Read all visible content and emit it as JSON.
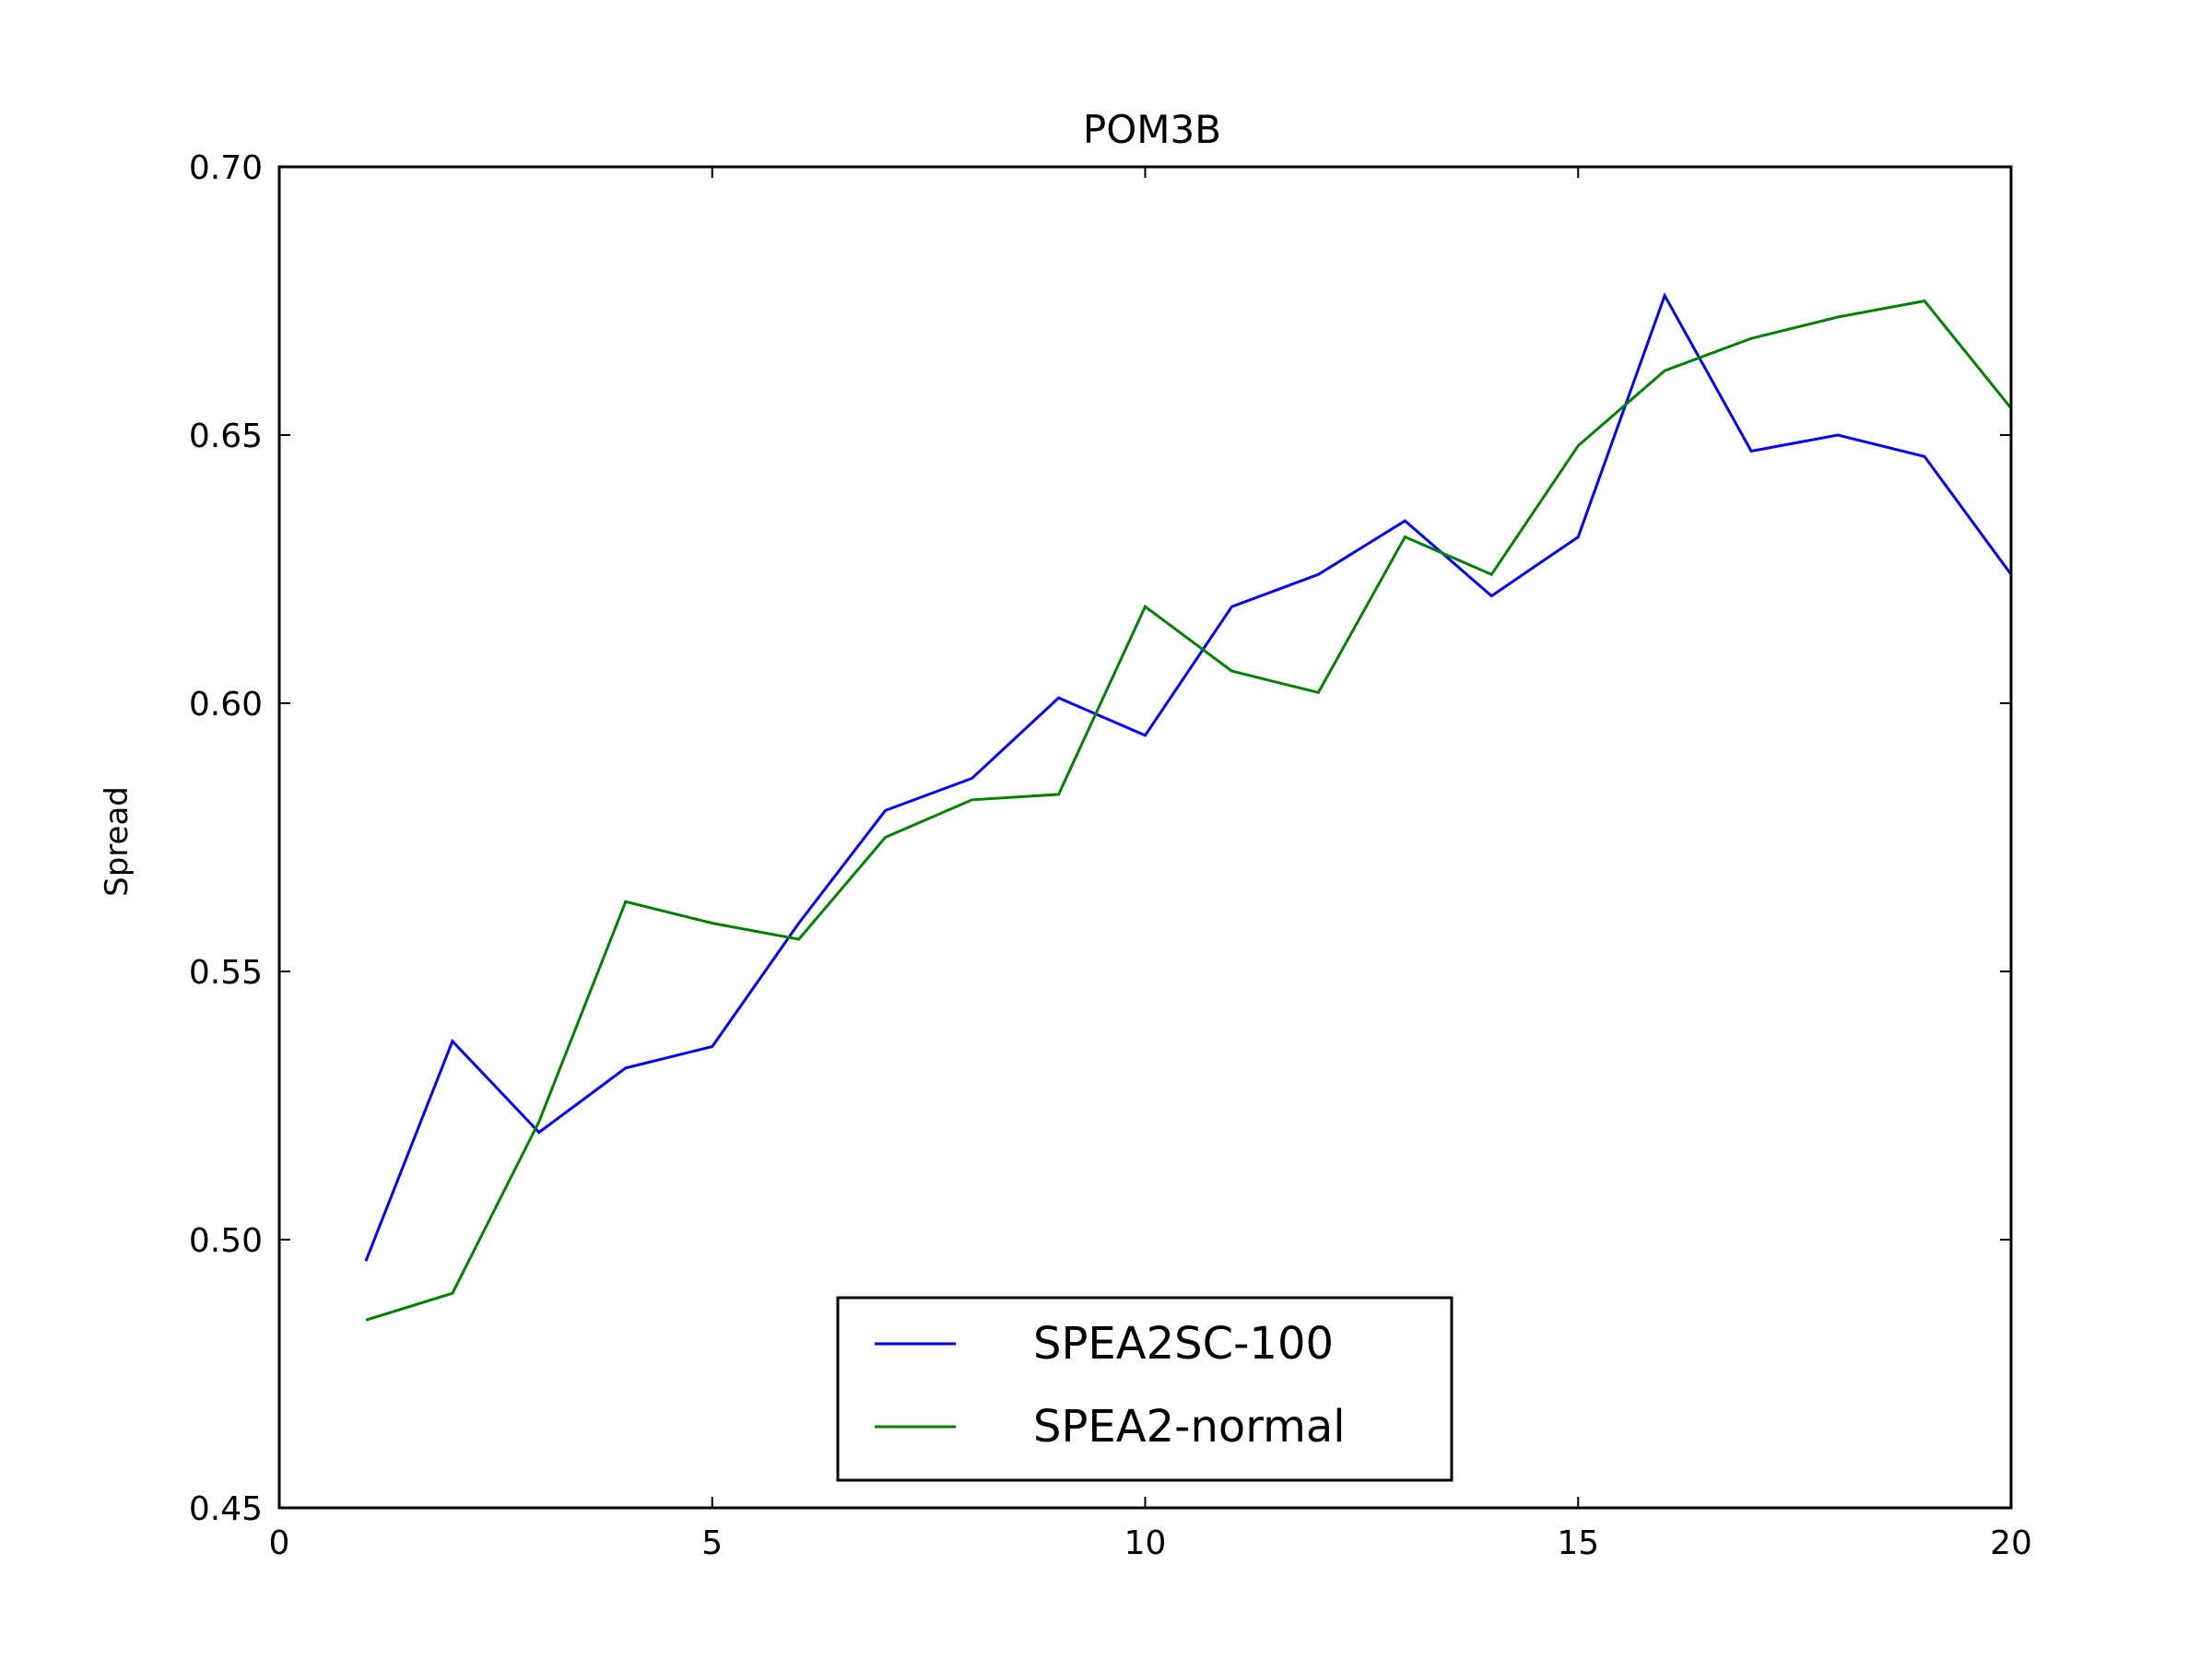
{
  "chart_data": {
    "type": "line",
    "title": "POM3B",
    "xlabel": "",
    "ylabel": "Spread",
    "xlim": [
      0,
      20
    ],
    "ylim": [
      0.45,
      0.7
    ],
    "xticks": [
      0,
      5,
      10,
      15,
      20
    ],
    "xtick_labels": [
      "0",
      "5",
      "10",
      "15",
      "20"
    ],
    "yticks": [
      0.45,
      0.5,
      0.55,
      0.6,
      0.65,
      0.7
    ],
    "ytick_labels": [
      "0.45",
      "0.50",
      "0.55",
      "0.60",
      "0.65",
      "0.70"
    ],
    "grid": false,
    "legend_position": "bottom-center",
    "x": [
      1,
      2,
      3,
      4,
      5,
      6,
      7,
      8,
      9,
      10,
      11,
      12,
      13,
      14,
      15,
      16,
      17,
      18,
      19,
      20
    ],
    "series": [
      {
        "name": "SPEA2SC-100",
        "color": "#0000ff",
        "values": [
          0.496,
          0.537,
          0.52,
          0.532,
          0.536,
          0.559,
          0.58,
          0.586,
          0.601,
          0.594,
          0.618,
          0.624,
          0.634,
          0.62,
          0.631,
          0.676,
          0.647,
          0.65,
          0.646,
          0.624
        ]
      },
      {
        "name": "SPEA2-normal",
        "color": "#008000",
        "values": [
          0.485,
          0.49,
          0.522,
          0.563,
          0.559,
          0.556,
          0.575,
          0.582,
          0.583,
          0.618,
          0.606,
          0.602,
          0.631,
          0.624,
          0.648,
          0.662,
          0.668,
          0.672,
          0.675,
          0.655
        ]
      }
    ]
  }
}
